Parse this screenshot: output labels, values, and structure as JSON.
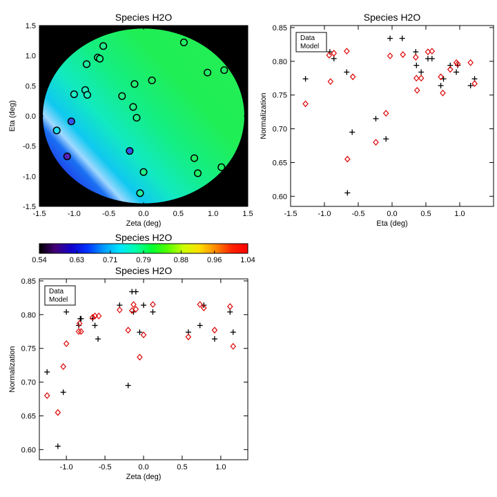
{
  "chart_data": [
    {
      "id": "map",
      "type": "heatmap",
      "title": "Species H2O",
      "xlabel": "Zeta (deg)",
      "ylabel": "Eta (deg)",
      "xlim": [
        -1.5,
        1.5
      ],
      "ylim": [
        -1.5,
        1.5
      ],
      "xticks": [
        -1.5,
        -1.0,
        -0.5,
        0.0,
        0.5,
        1.0,
        1.5
      ],
      "yticks": [
        -1.5,
        -1.0,
        -0.5,
        0.0,
        0.5,
        1.0,
        1.5
      ],
      "xtick_labels": [
        "-1.5",
        "-1.0",
        "-0.5",
        "0.0",
        "0.5",
        "1.0",
        "1.5"
      ],
      "ytick_labels": [
        "-1.5",
        "-1.0",
        "-0.5",
        "0.0",
        "0.5",
        "1.0",
        "1.5"
      ],
      "field_radius": 1.45,
      "background_color": "#000000",
      "stations": [
        {
          "zeta": 0.58,
          "eta": 1.22,
          "fill": "#22ee66"
        },
        {
          "zeta": -0.58,
          "eta": 1.16,
          "fill": "#22ee88"
        },
        {
          "zeta": -0.66,
          "eta": 0.97,
          "fill": "#22ee88"
        },
        {
          "zeta": -0.63,
          "eta": 0.95,
          "fill": "#22ee88"
        },
        {
          "zeta": -0.82,
          "eta": 0.86,
          "fill": "#22eea0"
        },
        {
          "zeta": 0.92,
          "eta": 0.72,
          "fill": "#22ee66"
        },
        {
          "zeta": 1.16,
          "eta": 0.76,
          "fill": "#22ee66"
        },
        {
          "zeta": 0.12,
          "eta": 0.59,
          "fill": "#22ee66"
        },
        {
          "zeta": -0.13,
          "eta": 0.53,
          "fill": "#22ee70"
        },
        {
          "zeta": -0.84,
          "eta": 0.43,
          "fill": "#22eec0"
        },
        {
          "zeta": -1.0,
          "eta": 0.36,
          "fill": "#22eec8"
        },
        {
          "zeta": -0.81,
          "eta": 0.35,
          "fill": "#22eec0"
        },
        {
          "zeta": -0.31,
          "eta": 0.33,
          "fill": "#22ee88"
        },
        {
          "zeta": -0.15,
          "eta": 0.15,
          "fill": "#22ee88"
        },
        {
          "zeta": -0.1,
          "eta": -0.03,
          "fill": "#22ee88"
        },
        {
          "zeta": -1.04,
          "eta": -0.09,
          "fill": "#3355ee"
        },
        {
          "zeta": -1.25,
          "eta": -0.24,
          "fill": "#22ddee"
        },
        {
          "zeta": -0.2,
          "eta": -0.58,
          "fill": "#3355ee"
        },
        {
          "zeta": -1.1,
          "eta": -0.67,
          "fill": "#5522bb"
        },
        {
          "zeta": 0.73,
          "eta": -0.7,
          "fill": "#22ee66"
        },
        {
          "zeta": 1.12,
          "eta": -0.85,
          "fill": "#22ee66"
        },
        {
          "zeta": 0.0,
          "eta": -0.93,
          "fill": "#22ee88"
        },
        {
          "zeta": 0.78,
          "eta": -0.95,
          "fill": "#22ee66"
        },
        {
          "zeta": -0.05,
          "eta": -1.28,
          "fill": "#22eea0"
        }
      ]
    },
    {
      "id": "eta",
      "type": "scatter",
      "title": "Species H2O",
      "xlabel": "Eta (deg)",
      "ylabel": "Normalization",
      "xlim": [
        -1.5,
        1.5
      ],
      "ylim": [
        0.585,
        0.853
      ],
      "xticks": [
        -1.5,
        -1.0,
        -0.5,
        0.0,
        0.5,
        1.0
      ],
      "yticks": [
        0.6,
        0.65,
        0.7,
        0.75,
        0.8,
        0.85
      ],
      "xtick_labels": [
        "-1.5",
        "-1.0",
        "-0.5",
        "0.0",
        "0.5",
        "1.0"
      ],
      "ytick_labels": [
        "0.60",
        "0.65",
        "0.70",
        "0.75",
        "0.80",
        "0.85"
      ],
      "legend": {
        "position": "top-left",
        "entries": [
          {
            "label": "Data",
            "color": "#000000"
          },
          {
            "label": "Model",
            "color": "#dd0000"
          }
        ]
      },
      "series": [
        {
          "name": "Data",
          "marker": "plus",
          "color": "#000000",
          "points": [
            [
              -1.28,
              0.774
            ],
            [
              -0.92,
              0.814
            ],
            [
              -0.86,
              0.804
            ],
            [
              -0.67,
              0.784
            ],
            [
              -0.66,
              0.605
            ],
            [
              -0.59,
              0.695
            ],
            [
              -0.24,
              0.715
            ],
            [
              -0.09,
              0.685
            ],
            [
              -0.03,
              0.834
            ],
            [
              0.15,
              0.834
            ],
            [
              0.35,
              0.814
            ],
            [
              0.36,
              0.794
            ],
            [
              0.43,
              0.784
            ],
            [
              0.53,
              0.804
            ],
            [
              0.59,
              0.804
            ],
            [
              0.72,
              0.764
            ],
            [
              0.76,
              0.774
            ],
            [
              0.86,
              0.794
            ],
            [
              0.95,
              0.784
            ],
            [
              0.97,
              0.794
            ],
            [
              1.16,
              0.764
            ],
            [
              1.22,
              0.774
            ]
          ]
        },
        {
          "name": "Model",
          "marker": "diamond",
          "color": "#dd0000",
          "points": [
            [
              -1.28,
              0.737
            ],
            [
              -0.93,
              0.809
            ],
            [
              -0.91,
              0.77
            ],
            [
              -0.86,
              0.812
            ],
            [
              -0.67,
              0.815
            ],
            [
              -0.66,
              0.655
            ],
            [
              -0.58,
              0.777
            ],
            [
              -0.24,
              0.68
            ],
            [
              -0.09,
              0.723
            ],
            [
              -0.03,
              0.808
            ],
            [
              0.16,
              0.81
            ],
            [
              0.35,
              0.806
            ],
            [
              0.36,
              0.775
            ],
            [
              0.37,
              0.757
            ],
            [
              0.43,
              0.775
            ],
            [
              0.53,
              0.814
            ],
            [
              0.59,
              0.815
            ],
            [
              0.72,
              0.777
            ],
            [
              0.75,
              0.753
            ],
            [
              0.86,
              0.788
            ],
            [
              0.95,
              0.798
            ],
            [
              0.97,
              0.796
            ],
            [
              1.16,
              0.798
            ],
            [
              1.22,
              0.767
            ]
          ]
        }
      ]
    },
    {
      "id": "colorbar",
      "type": "colorbar",
      "title": "Species H2O",
      "range": [
        0.54,
        1.04
      ],
      "ticks": [
        0.54,
        0.63,
        0.71,
        0.79,
        0.88,
        0.96,
        1.04
      ],
      "tick_labels": [
        "0.54",
        "0.63",
        "0.71",
        "0.79",
        "0.88",
        "0.96",
        "1.04"
      ],
      "colors": [
        "#000000",
        "#440077",
        "#1100cc",
        "#0033ff",
        "#0099ff",
        "#00e5ff",
        "#00ffaa",
        "#00ff33",
        "#55ff00",
        "#ccff00",
        "#ffdd00",
        "#ff8800",
        "#ff2200",
        "#ff0000"
      ]
    },
    {
      "id": "zeta",
      "type": "scatter",
      "title": "Species H2O",
      "xlabel": "Zeta (deg)",
      "ylabel": "Normalization",
      "xlim": [
        -1.35,
        1.35
      ],
      "ylim": [
        0.585,
        0.853
      ],
      "xticks": [
        -1.0,
        -0.5,
        0.0,
        0.5,
        1.0
      ],
      "yticks": [
        0.6,
        0.65,
        0.7,
        0.75,
        0.8,
        0.85
      ],
      "xtick_labels": [
        "-1.0",
        "-0.5",
        "0.0",
        "0.5",
        "1.0"
      ],
      "ytick_labels": [
        "0.60",
        "0.65",
        "0.70",
        "0.75",
        "0.80",
        "0.85"
      ],
      "legend": {
        "position": "top-left",
        "entries": [
          {
            "label": "Data",
            "color": "#000000"
          },
          {
            "label": "Model",
            "color": "#dd0000"
          }
        ]
      },
      "series": [
        {
          "name": "Data",
          "marker": "plus",
          "color": "#000000",
          "points": [
            [
              -1.25,
              0.715
            ],
            [
              -1.11,
              0.605
            ],
            [
              -1.04,
              0.685
            ],
            [
              -1.0,
              0.804
            ],
            [
              -0.84,
              0.784
            ],
            [
              -0.82,
              0.794
            ],
            [
              -0.81,
              0.794
            ],
            [
              -0.66,
              0.794
            ],
            [
              -0.63,
              0.784
            ],
            [
              -0.59,
              0.764
            ],
            [
              -0.31,
              0.814
            ],
            [
              -0.2,
              0.695
            ],
            [
              -0.15,
              0.834
            ],
            [
              -0.13,
              0.804
            ],
            [
              -0.1,
              0.834
            ],
            [
              -0.05,
              0.774
            ],
            [
              0.0,
              0.814
            ],
            [
              0.12,
              0.804
            ],
            [
              0.58,
              0.774
            ],
            [
              0.73,
              0.784
            ],
            [
              0.78,
              0.814
            ],
            [
              0.92,
              0.764
            ],
            [
              1.12,
              0.804
            ],
            [
              1.16,
              0.774
            ]
          ]
        },
        {
          "name": "Model",
          "marker": "diamond",
          "color": "#dd0000",
          "points": [
            [
              -1.25,
              0.68
            ],
            [
              -1.11,
              0.655
            ],
            [
              -1.04,
              0.723
            ],
            [
              -1.0,
              0.757
            ],
            [
              -0.84,
              0.775
            ],
            [
              -0.83,
              0.787
            ],
            [
              -0.81,
              0.775
            ],
            [
              -0.66,
              0.796
            ],
            [
              -0.63,
              0.798
            ],
            [
              -0.58,
              0.798
            ],
            [
              -0.31,
              0.807
            ],
            [
              -0.2,
              0.777
            ],
            [
              -0.15,
              0.806
            ],
            [
              -0.13,
              0.815
            ],
            [
              -0.1,
              0.808
            ],
            [
              -0.05,
              0.737
            ],
            [
              0.0,
              0.77
            ],
            [
              0.12,
              0.815
            ],
            [
              0.58,
              0.767
            ],
            [
              0.73,
              0.815
            ],
            [
              0.78,
              0.81
            ],
            [
              0.92,
              0.777
            ],
            [
              1.12,
              0.812
            ],
            [
              1.16,
              0.753
            ]
          ]
        }
      ]
    }
  ]
}
